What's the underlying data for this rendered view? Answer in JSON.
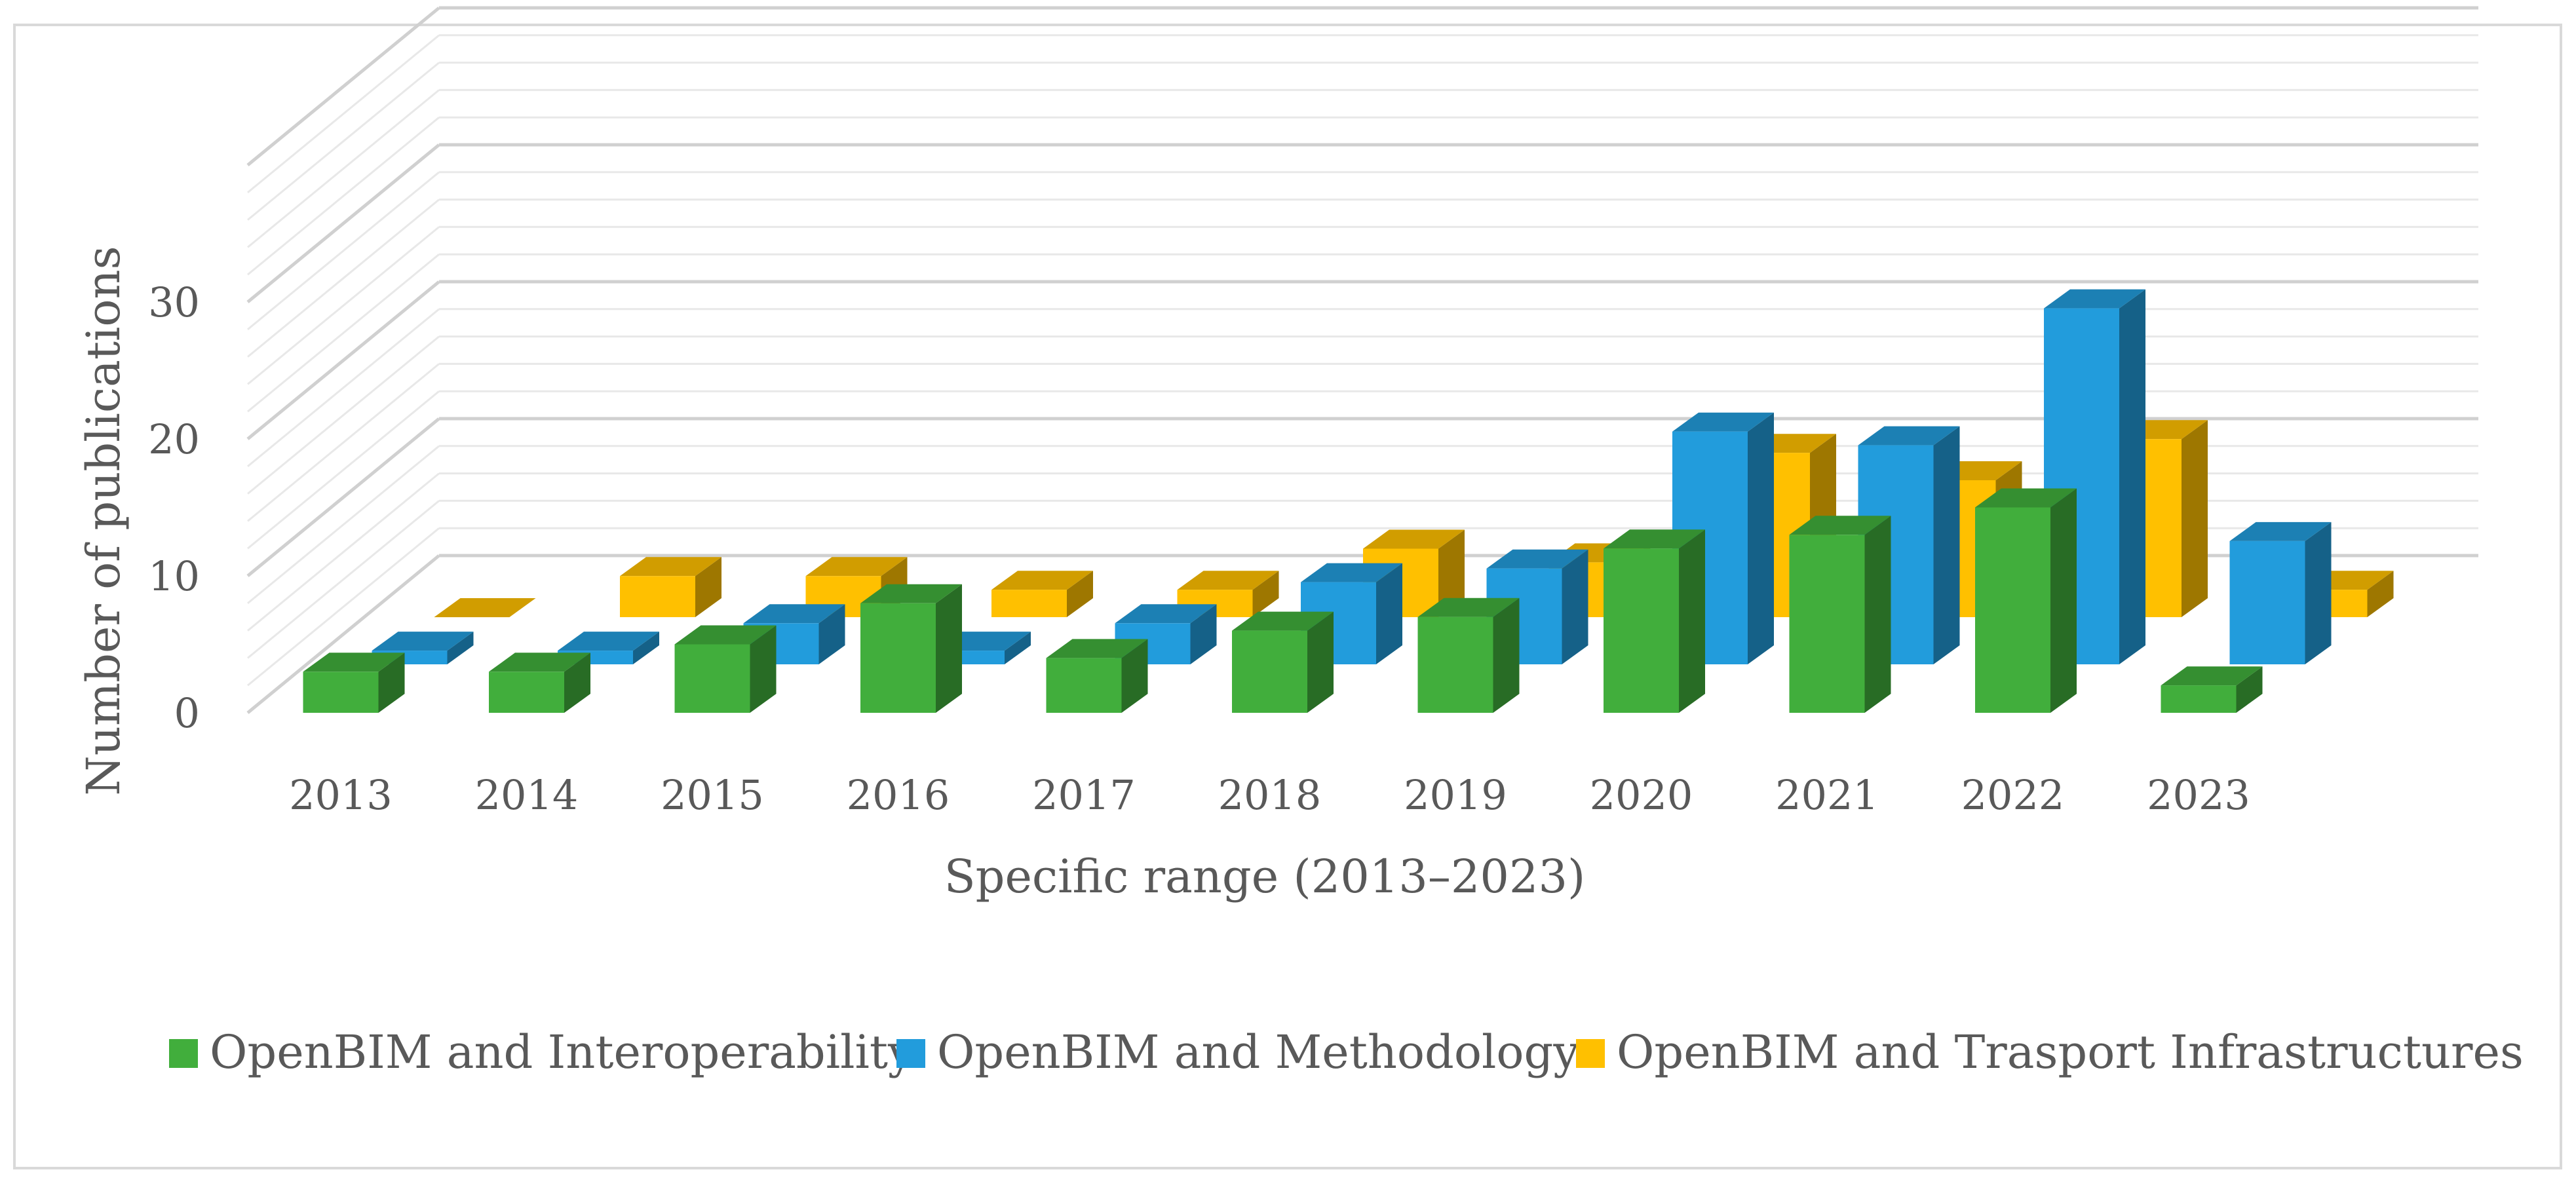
{
  "chart_data": {
    "type": "bar",
    "style": "3d-clustered-column",
    "title": "",
    "xlabel": "Specific range (2013–2023)",
    "ylabel": "Number of publications",
    "ylim": [
      0,
      40
    ],
    "yticks": [
      0,
      10,
      20,
      30
    ],
    "grid": true,
    "legend_position": "bottom",
    "categories": [
      "2013",
      "2014",
      "2015",
      "2016",
      "2017",
      "2018",
      "2019",
      "2020",
      "2021",
      "2022",
      "2023"
    ],
    "series": [
      {
        "name": "OpenBIM and Interoperability",
        "color": "#41AE3C",
        "values": [
          3,
          3,
          5,
          8,
          4,
          6,
          7,
          12,
          13,
          15,
          2
        ]
      },
      {
        "name": "OpenBIM and Methodology",
        "color": "#229CDC",
        "values": [
          1,
          1,
          3,
          1,
          3,
          6,
          7,
          17,
          16,
          26,
          9
        ]
      },
      {
        "name": "OpenBIM and Trasport Infrastructures",
        "color": "#FFC000",
        "values": [
          0,
          3,
          3,
          2,
          2,
          5,
          4,
          12,
          10,
          13,
          2
        ]
      }
    ]
  }
}
